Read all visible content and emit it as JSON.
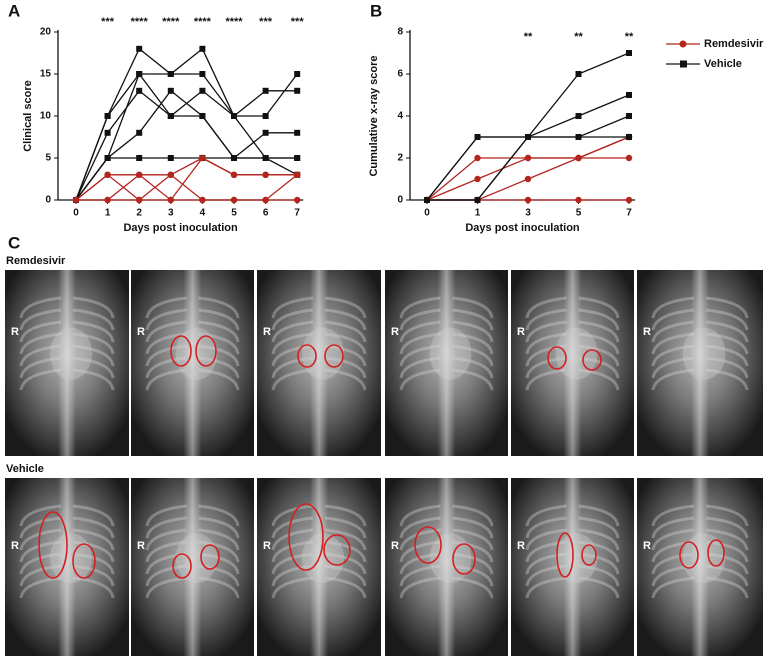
{
  "chart_data": [
    {
      "type": "line",
      "panel": "A",
      "y_label": "Clinical score",
      "x_label": "Days post inoculation",
      "categories": [
        "0",
        "1",
        "2",
        "3",
        "4",
        "5",
        "6",
        "7"
      ],
      "ylim": [
        0,
        20
      ],
      "yticks": [
        0,
        5,
        10,
        15,
        20
      ],
      "annotations": [
        null,
        "***",
        "****",
        "****",
        "****",
        "****",
        "***",
        "***"
      ],
      "series": [
        {
          "color": "#111111",
          "marker": "square",
          "values": [
            [
              0,
              10,
              18,
              15,
              18,
              10,
              5,
              5
            ],
            [
              0,
              10,
              15,
              15,
              15,
              10,
              13,
              13
            ],
            [
              0,
              8,
              13,
              10,
              13,
              10,
              10,
              15
            ],
            [
              0,
              5,
              8,
              13,
              10,
              5,
              8,
              8
            ],
            [
              0,
              5,
              15,
              10,
              10,
              5,
              5,
              3
            ],
            [
              0,
              5,
              5,
              5,
              5,
              5,
              5,
              5
            ]
          ]
        },
        {
          "color": "#b3261e",
          "marker": "circle",
          "values": [
            [
              0,
              3,
              0,
              3,
              5,
              3,
              3,
              3
            ],
            [
              0,
              3,
              3,
              0,
              5,
              3,
              3,
              3
            ],
            [
              0,
              0,
              3,
              3,
              0,
              0,
              0,
              3
            ],
            [
              0,
              0,
              0,
              0,
              0,
              0,
              0,
              0
            ]
          ]
        }
      ]
    },
    {
      "type": "line",
      "panel": "B",
      "y_label": "Cumulative x-ray score",
      "x_label": "Days post inoculation",
      "categories": [
        "0",
        "1",
        "3",
        "5",
        "7"
      ],
      "ylim": [
        0,
        8
      ],
      "yticks": [
        0,
        2,
        4,
        6,
        8
      ],
      "annotations": [
        null,
        null,
        "**",
        "**",
        "**"
      ],
      "legend": "right",
      "series": [
        {
          "name": "Remdesivir",
          "color": "#b3261e",
          "marker": "circle",
          "values": [
            [
              0,
              2,
              2,
              2,
              2
            ],
            [
              0,
              1,
              2,
              2,
              3
            ],
            [
              0,
              0,
              1,
              2,
              3
            ],
            [
              0,
              0,
              0,
              0,
              0
            ]
          ]
        },
        {
          "name": "Vehicle",
          "color": "#111111",
          "marker": "square",
          "values": [
            [
              0,
              3,
              3,
              6,
              7
            ],
            [
              0,
              0,
              3,
              4,
              5
            ],
            [
              0,
              3,
              3,
              3,
              4
            ],
            [
              0,
              0,
              3,
              3,
              3
            ]
          ]
        }
      ]
    }
  ],
  "panel_c": {
    "label": "C",
    "rows": [
      {
        "title": "Remdesivir",
        "side_labels": [
          "R",
          "R",
          "R",
          "R",
          "R",
          "R"
        ]
      },
      {
        "title": "Vehicle",
        "side_labels": [
          "R",
          "R",
          "R",
          "R",
          "R",
          "R"
        ]
      }
    ]
  }
}
